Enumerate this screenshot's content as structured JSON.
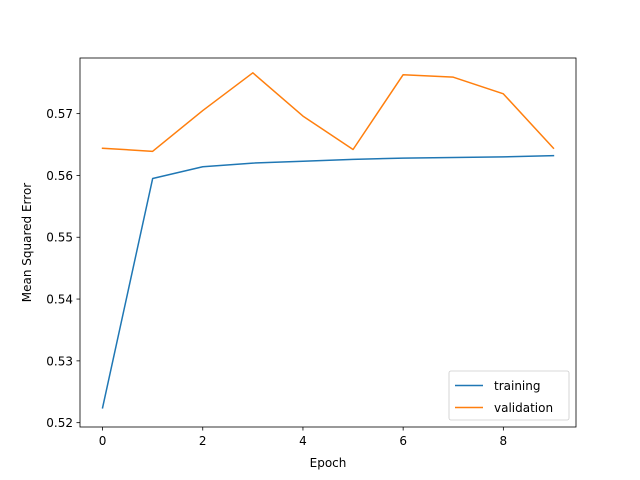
{
  "chart_data": {
    "type": "line",
    "title": "",
    "xlabel": "Epoch",
    "ylabel": "Mean Squared Error",
    "x": [
      0,
      1,
      2,
      3,
      4,
      5,
      6,
      7,
      8,
      9
    ],
    "xlim": [
      -0.45,
      9.45
    ],
    "ylim": [
      0.5193,
      0.579
    ],
    "xticks": [
      0,
      2,
      4,
      6,
      8
    ],
    "xtick_labels": [
      "0",
      "2",
      "4",
      "6",
      "8"
    ],
    "yticks": [
      0.52,
      0.53,
      0.54,
      0.55,
      0.56,
      0.57
    ],
    "ytick_labels": [
      "0.52",
      "0.53",
      "0.54",
      "0.55",
      "0.56",
      "0.57"
    ],
    "grid": false,
    "legend": "lower-right",
    "series": [
      {
        "name": "training",
        "color": "#1f77b4",
        "values": [
          0.5224,
          0.5595,
          0.5614,
          0.562,
          0.5623,
          0.5626,
          0.5628,
          0.5629,
          0.563,
          0.5632
        ]
      },
      {
        "name": "validation",
        "color": "#ff7f0e",
        "values": [
          0.5644,
          0.5639,
          0.5705,
          0.5766,
          0.5696,
          0.5642,
          0.5763,
          0.5759,
          0.5732,
          0.5644
        ]
      }
    ]
  }
}
